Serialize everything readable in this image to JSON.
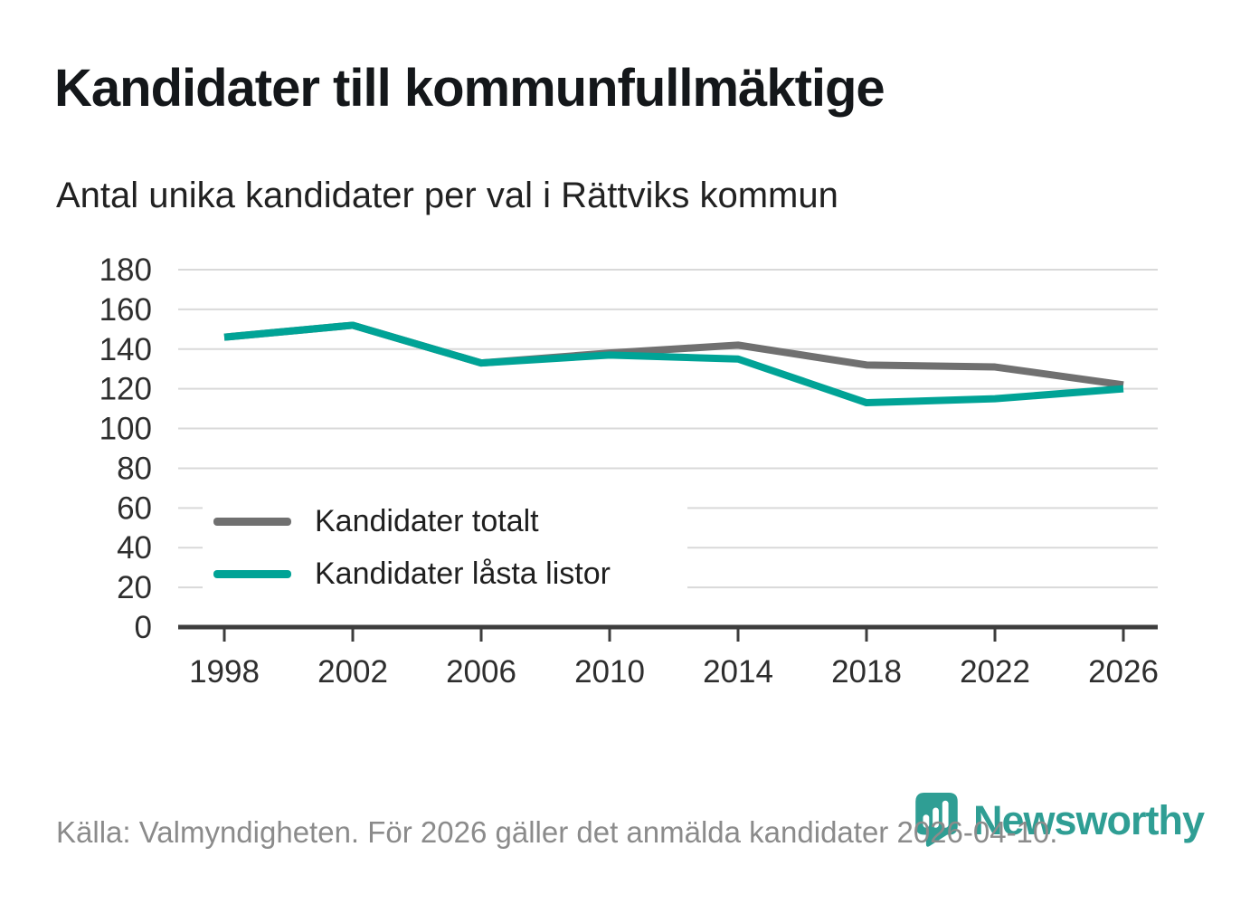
{
  "header": {
    "title": "Kandidater till kommunfullmäktige",
    "subtitle": "Antal unika kandidater per val i Rättviks kommun"
  },
  "chart_data": {
    "type": "line",
    "title": "Kandidater till kommunfullmäktige",
    "subtitle": "Antal unika kandidater per val i Rättviks kommun",
    "categories": [
      "1998",
      "2002",
      "2006",
      "2010",
      "2014",
      "2018",
      "2022",
      "2026"
    ],
    "series": [
      {
        "name": "Kandidater totalt",
        "color": "#707070",
        "values": [
          146,
          152,
          133,
          138,
          142,
          132,
          131,
          122
        ]
      },
      {
        "name": "Kandidater låsta listor",
        "color": "#00a396",
        "values": [
          146,
          152,
          133,
          137,
          135,
          113,
          115,
          120
        ]
      }
    ],
    "xlabel": "",
    "ylabel": "",
    "ylim": [
      0,
      180
    ],
    "yticks": [
      0,
      20,
      40,
      60,
      80,
      100,
      120,
      140,
      160,
      180
    ],
    "grid": "horizontal",
    "legend_position": "inside-bottom-left"
  },
  "footer": {
    "source": "Källa: Valmyndigheten. För 2026 gäller det anmälda kandidater 2026-04-10.",
    "brand": "Newsworthy"
  },
  "colors": {
    "total_line": "#707070",
    "locked_line": "#00a396",
    "grid": "#d9d9d9",
    "axis": "#3d3d3d",
    "title_text": "#14171a",
    "tick_text": "#2e2e2e",
    "footer_text": "#8b8b8b",
    "brand_teal": "#2f9e94"
  }
}
